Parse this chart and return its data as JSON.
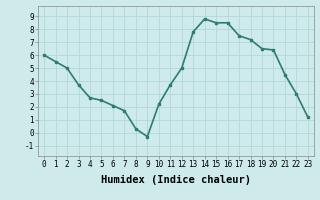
{
  "x": [
    0,
    1,
    2,
    3,
    4,
    5,
    6,
    7,
    8,
    9,
    10,
    11,
    12,
    13,
    14,
    15,
    16,
    17,
    18,
    19,
    20,
    21,
    22,
    23
  ],
  "y": [
    6.0,
    5.5,
    5.0,
    3.7,
    2.7,
    2.5,
    2.1,
    1.7,
    0.3,
    -0.3,
    2.2,
    3.7,
    5.0,
    7.8,
    8.8,
    8.5,
    8.5,
    7.5,
    7.2,
    6.5,
    6.4,
    4.5,
    3.0,
    1.2
  ],
  "line_color": "#2e7d6e",
  "marker": "s",
  "marker_size": 2.0,
  "bg_color": "#ceeaea",
  "grid_color": "#b0d8d8",
  "xlabel": "Humidex (Indice chaleur)",
  "xlim": [
    -0.5,
    23.5
  ],
  "ylim": [
    -1.8,
    9.8
  ],
  "yticks": [
    -1,
    0,
    1,
    2,
    3,
    4,
    5,
    6,
    7,
    8,
    9
  ],
  "xticks": [
    0,
    1,
    2,
    3,
    4,
    5,
    6,
    7,
    8,
    9,
    10,
    11,
    12,
    13,
    14,
    15,
    16,
    17,
    18,
    19,
    20,
    21,
    22,
    23
  ],
  "tick_label_fontsize": 5.5,
  "xlabel_fontsize": 7.5,
  "line_width": 1.2
}
